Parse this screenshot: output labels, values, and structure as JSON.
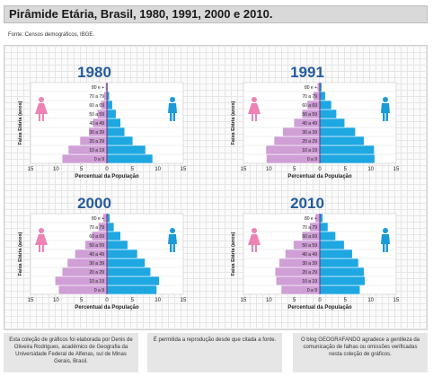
{
  "page": {
    "title": "Pirâmide Etária, Brasil, 1980, 1991, 2000 e 2010.",
    "source": "Fonte: Censos demográficos, IBGE."
  },
  "footer": {
    "note1": "Esta coleção de gráficos foi elaborada por Denis de Oliveira Rodrigues, acadêmico de Geografia da Universidade Federal de Alfenas, sul de Minas Gerais, Brasil.",
    "note2": "É permitida a reprodução desde que citada a fonte.",
    "note3": "O blog GEOGRAFANDO agradece a gentileza da comunicação de falhas ou omissões verificadas nesta coleção de gráficos."
  },
  "colors": {
    "female": "#cf9fd6",
    "male": "#1ea7e1",
    "female_icon": "#ee82b4",
    "male_icon": "#1a9ad6",
    "year_label": "#245b9e"
  },
  "chart_data": [
    {
      "type": "bar",
      "year_label": "1980",
      "categories": [
        "0 a 9",
        "10 a 19",
        "20 a 29",
        "30 a 39",
        "40 a 49",
        "50 a 59",
        "60 a 69",
        "70 a 79",
        "80 e +"
      ],
      "series": [
        {
          "key": "female",
          "values": [
            8.8,
            7.6,
            5.3,
            3.6,
            2.8,
            1.9,
            1.2,
            0.6,
            0.3
          ]
        },
        {
          "key": "male",
          "values": [
            9.0,
            7.6,
            5.1,
            3.5,
            2.7,
            1.8,
            1.1,
            0.5,
            0.2
          ]
        }
      ],
      "ylabel": "Faixa Etária (anos)",
      "xlabel": "Percentual da População",
      "xticks": [
        "15",
        "10",
        "5",
        "0",
        "5",
        "10",
        "15"
      ],
      "xlim": [
        -15,
        15
      ]
    },
    {
      "type": "bar",
      "year_label": "1991",
      "categories": [
        "0 a 9",
        "10 a 19",
        "20 a 29",
        "30 a 39",
        "40 a 49",
        "50 a 59",
        "60 a 69",
        "70 a 79",
        "80 e +"
      ],
      "series": [
        {
          "key": "female",
          "values": [
            10.5,
            10.6,
            9.0,
            7.3,
            5.1,
            3.5,
            2.5,
            1.3,
            0.5
          ]
        },
        {
          "key": "male",
          "values": [
            10.8,
            10.7,
            8.7,
            7.0,
            4.9,
            3.3,
            2.3,
            1.1,
            0.4
          ]
        }
      ],
      "ylabel": "Faixa Etária (anos)",
      "xlabel": "Percentual da População",
      "xticks": [
        "15",
        "10",
        "5",
        "0",
        "5",
        "10",
        "15"
      ],
      "xlim": [
        -15,
        15
      ]
    },
    {
      "type": "bar",
      "year_label": "2000",
      "categories": [
        "0 a 9",
        "10 a 19",
        "20 a 29",
        "30 a 39",
        "40 a 49",
        "50 a 59",
        "60 a 69",
        "70 a 79",
        "80 e +"
      ],
      "series": [
        {
          "key": "female",
          "values": [
            9.5,
            10.2,
            8.8,
            7.8,
            6.3,
            4.3,
            3.0,
            1.7,
            0.8
          ]
        },
        {
          "key": "male",
          "values": [
            9.8,
            10.3,
            8.6,
            7.5,
            6.0,
            4.1,
            2.7,
            1.4,
            0.6
          ]
        }
      ],
      "ylabel": "Faixa Etária (anos)",
      "xlabel": "Percentual da População",
      "xticks": [
        "15",
        "10",
        "5",
        "0",
        "5",
        "10",
        "15"
      ],
      "xlim": [
        -15,
        15
      ]
    },
    {
      "type": "bar",
      "year_label": "2010",
      "categories": [
        "0 a 9",
        "10 a 19",
        "20 a 29",
        "30 a 39",
        "40 a 49",
        "50 a 59",
        "60 a 69",
        "70 a 79",
        "80 e +"
      ],
      "series": [
        {
          "key": "female",
          "values": [
            7.6,
            8.6,
            8.8,
            8.0,
            6.8,
            5.2,
            3.5,
            2.0,
            0.9
          ]
        },
        {
          "key": "male",
          "values": [
            7.9,
            8.9,
            8.7,
            7.6,
            6.4,
            4.8,
            3.1,
            1.6,
            0.6
          ]
        }
      ],
      "ylabel": "Faixa Etária (anos)",
      "xlabel": "Percentual da População",
      "xticks": [
        "15",
        "10",
        "5",
        "0",
        "5",
        "10",
        "15"
      ],
      "xlim": [
        -15,
        15
      ]
    }
  ]
}
